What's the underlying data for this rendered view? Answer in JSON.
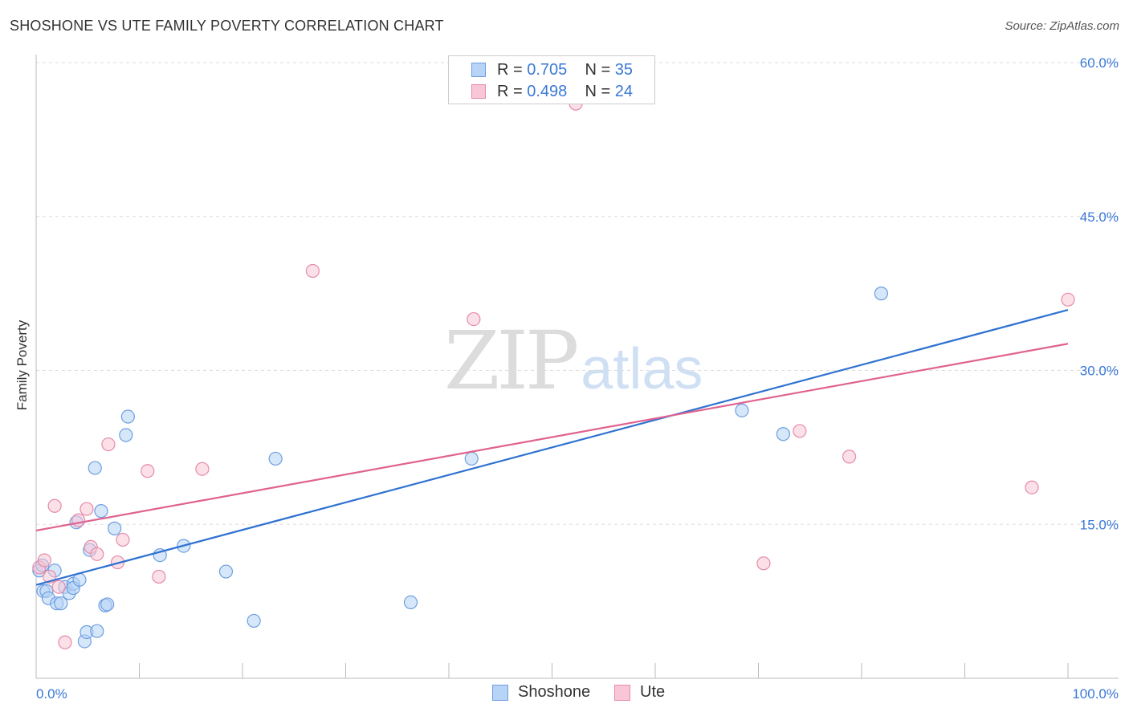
{
  "title": "SHOSHONE VS UTE FAMILY POVERTY CORRELATION CHART",
  "source": "Source: ZipAtlas.com",
  "watermark": {
    "zip": "ZIP",
    "atlas": "atlas"
  },
  "legend": {
    "rows": [
      {
        "r_label": "R = ",
        "r_value": "0.705",
        "n_label": "N = ",
        "n_value": "35"
      },
      {
        "r_label": "R = ",
        "r_value": "0.498",
        "n_label": "N = ",
        "n_value": "24"
      }
    ]
  },
  "colors": {
    "shoshone_fill": "#b7d3f5",
    "shoshone_stroke": "#6c9ee0",
    "shoshone_line": "#2f72d1",
    "ute_fill": "#f8c6d6",
    "ute_stroke": "#e68aa9",
    "ute_line": "#e0628f",
    "tick_text": "#3a78d8",
    "grid": "#dddddd"
  },
  "chart_data": {
    "type": "scatter",
    "title": "SHOSHONE VS UTE FAMILY POVERTY CORRELATION CHART",
    "xlabel": "",
    "ylabel": "Family Poverty",
    "xlim": [
      0,
      100
    ],
    "ylim": [
      0,
      60
    ],
    "x_tick_labels": [
      "0.0%",
      "100.0%"
    ],
    "y_ticks": [
      15,
      30,
      45,
      60
    ],
    "y_tick_labels": [
      "15.0%",
      "30.0%",
      "45.0%",
      "60.0%"
    ],
    "grid": "horizontal dashed",
    "legend_position": "top-center",
    "series": [
      {
        "name": "Shoshone",
        "R": 0.705,
        "N": 35,
        "points": [
          [
            0.3,
            10.5
          ],
          [
            0.6,
            11.0
          ],
          [
            0.7,
            8.5
          ],
          [
            1.0,
            8.5
          ],
          [
            1.2,
            7.8
          ],
          [
            1.8,
            10.5
          ],
          [
            2.0,
            7.3
          ],
          [
            2.4,
            7.3
          ],
          [
            2.8,
            8.9
          ],
          [
            3.2,
            8.3
          ],
          [
            3.6,
            9.2
          ],
          [
            3.6,
            8.8
          ],
          [
            4.2,
            9.6
          ],
          [
            4.7,
            3.6
          ],
          [
            4.9,
            4.5
          ],
          [
            5.2,
            12.5
          ],
          [
            5.7,
            20.5
          ],
          [
            5.9,
            4.6
          ],
          [
            6.3,
            16.3
          ],
          [
            6.7,
            7.1
          ],
          [
            6.9,
            7.2
          ],
          [
            7.6,
            14.6
          ],
          [
            8.7,
            23.7
          ],
          [
            8.9,
            25.5
          ],
          [
            12.0,
            12.0
          ],
          [
            14.3,
            12.9
          ],
          [
            18.4,
            10.4
          ],
          [
            21.1,
            5.6
          ],
          [
            23.2,
            21.4
          ],
          [
            36.3,
            7.4
          ],
          [
            42.2,
            21.4
          ],
          [
            68.4,
            26.1
          ],
          [
            72.4,
            23.8
          ],
          [
            81.9,
            37.5
          ],
          [
            3.9,
            15.2
          ]
        ],
        "trend": {
          "x": [
            0,
            100
          ],
          "y": [
            9.1,
            35.9
          ]
        }
      },
      {
        "name": "Ute",
        "R": 0.498,
        "N": 24,
        "points": [
          [
            0.3,
            10.8
          ],
          [
            0.8,
            11.5
          ],
          [
            1.3,
            9.9
          ],
          [
            1.8,
            16.8
          ],
          [
            2.2,
            8.9
          ],
          [
            2.8,
            3.5
          ],
          [
            4.1,
            15.4
          ],
          [
            4.9,
            16.5
          ],
          [
            5.3,
            12.8
          ],
          [
            5.9,
            12.1
          ],
          [
            7.0,
            22.8
          ],
          [
            7.9,
            11.3
          ],
          [
            8.4,
            13.5
          ],
          [
            10.8,
            20.2
          ],
          [
            11.9,
            9.9
          ],
          [
            16.1,
            20.4
          ],
          [
            26.8,
            39.7
          ],
          [
            42.4,
            35.0
          ],
          [
            52.3,
            56.0
          ],
          [
            70.5,
            11.2
          ],
          [
            74.0,
            24.1
          ],
          [
            78.8,
            21.6
          ],
          [
            96.5,
            18.6
          ],
          [
            100.0,
            36.9
          ]
        ],
        "trend": {
          "x": [
            0,
            100
          ],
          "y": [
            14.4,
            32.6
          ]
        }
      }
    ]
  },
  "bottom_legend": [
    "Shoshone",
    "Ute"
  ]
}
